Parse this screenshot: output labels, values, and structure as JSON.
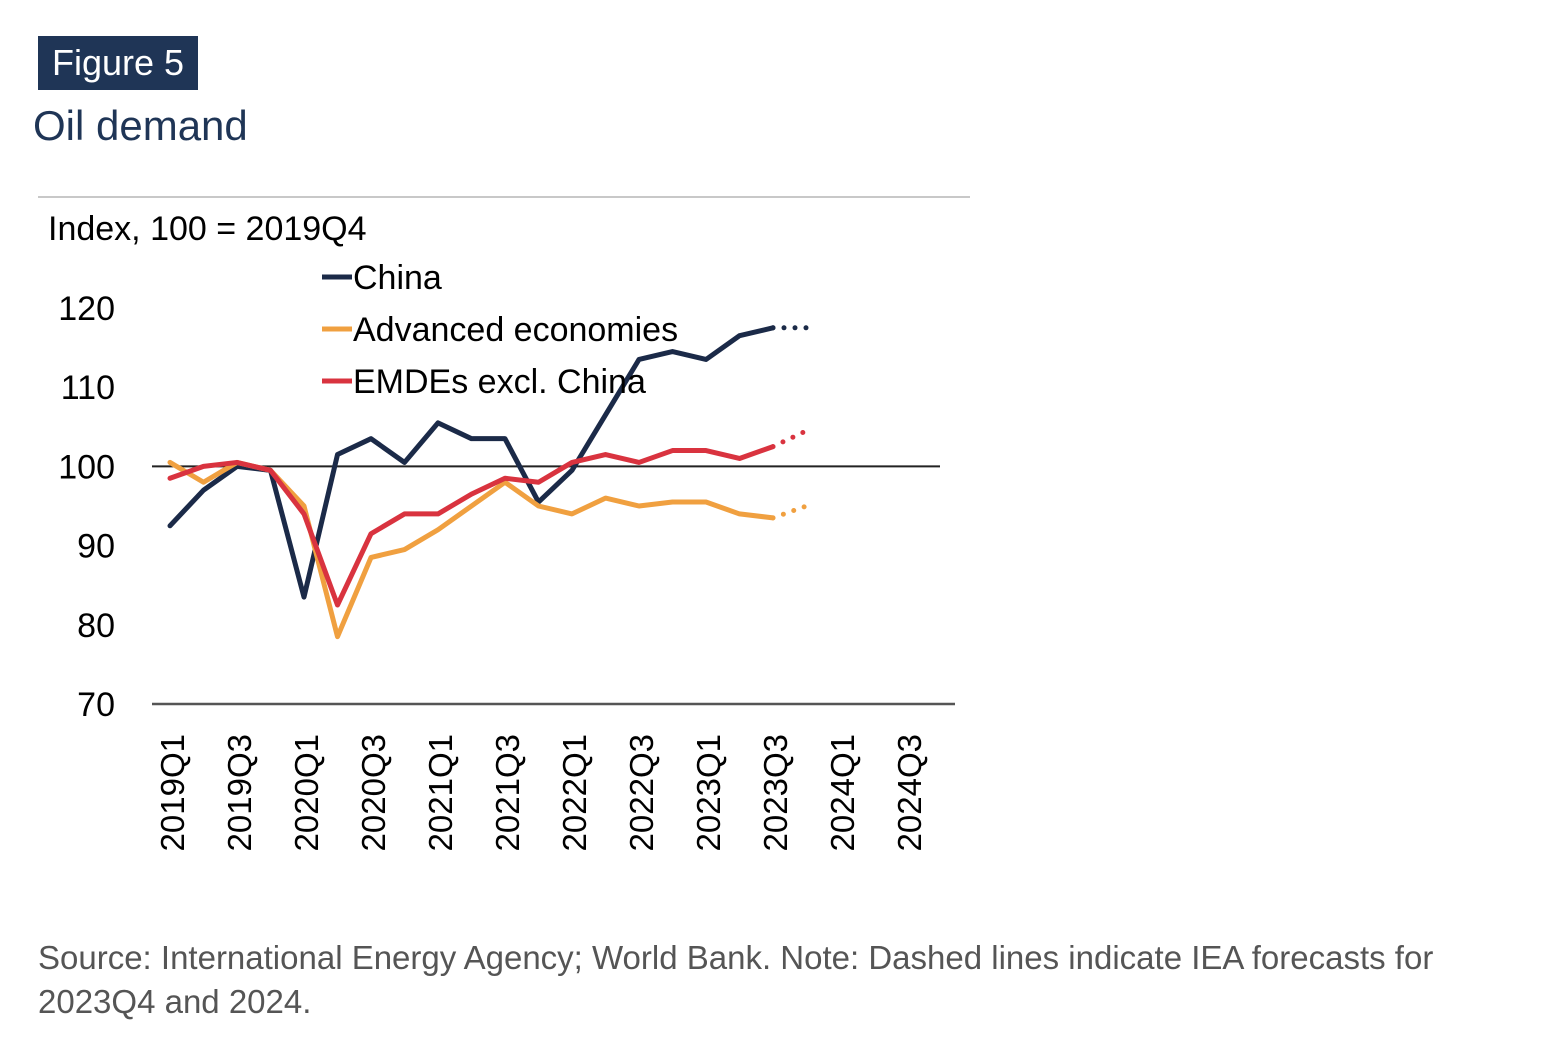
{
  "figure": {
    "label": "Figure 5",
    "title": "Oil demand"
  },
  "note": "Source: International Energy Agency; World Bank. Note: Dashed lines indicate IEA forecasts for 2023Q4 and 2024.",
  "chart_data": {
    "type": "line",
    "unit_label": "Index, 100 = 2019Q4",
    "ylim": [
      70,
      120
    ],
    "yticks": [
      70,
      80,
      90,
      100,
      110,
      120
    ],
    "reference_line": 100,
    "x": [
      "2019Q1",
      "2019Q2",
      "2019Q3",
      "2019Q4",
      "2020Q1",
      "2020Q2",
      "2020Q3",
      "2020Q4",
      "2021Q1",
      "2021Q2",
      "2021Q3",
      "2021Q4",
      "2022Q1",
      "2022Q2",
      "2022Q3",
      "2022Q4",
      "2023Q1",
      "2023Q2",
      "2023Q3",
      "2023Q4",
      "2024Q1",
      "2024Q2",
      "2024Q3",
      "2024Q4"
    ],
    "xtick_labels": [
      "2019Q1",
      "2019Q3",
      "2020Q1",
      "2020Q3",
      "2021Q1",
      "2021Q3",
      "2022Q1",
      "2022Q3",
      "2023Q1",
      "2023Q3",
      "2024Q1",
      "2024Q3"
    ],
    "forecast_start": "2023Q3",
    "series": [
      {
        "name": "China",
        "color": "#1b2a48",
        "values": [
          92.5,
          97,
          100,
          99.5,
          83.5,
          101.5,
          103.5,
          100.5,
          105.5,
          103.5,
          103.5,
          95.5,
          99.5,
          106.5,
          113.5,
          114.5,
          113.5,
          116.5,
          117.5,
          117.5,
          null,
          null,
          null,
          null
        ]
      },
      {
        "name": "Advanced economies",
        "color": "#f0a040",
        "values": [
          100.5,
          98,
          100.5,
          99.5,
          95,
          78.5,
          88.5,
          89.5,
          92,
          95,
          98,
          95,
          94,
          96,
          95,
          95.5,
          95.5,
          94,
          93.5,
          95,
          null,
          null,
          null,
          null
        ]
      },
      {
        "name": "EMDEs excl. China",
        "color": "#d9333f",
        "values": [
          98.5,
          100,
          100.5,
          99.5,
          94,
          82.5,
          91.5,
          94,
          94,
          96.5,
          98.5,
          98,
          100.5,
          101.5,
          100.5,
          102,
          102,
          101,
          102.5,
          104.5,
          null,
          null,
          null,
          null
        ]
      }
    ]
  }
}
